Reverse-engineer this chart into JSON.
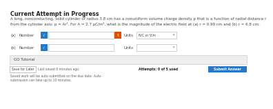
{
  "bg_color": "#ffffff",
  "panel_bg": "#f8f8f8",
  "header_text": "Current Attempt in Progress",
  "body_line1": "A long, nonconducting, solid cylinder of radius 3.8 cm has a nonuniform volume charge density p that is a function of radial distance r",
  "body_line2": "from the cylinder axis: p = Ar². For A = 2.7 µC/m⁵, what is the magnitude of the electric field at (a) r = 0.99 cm and (b) r = 6.8 cm.",
  "label_a": "(a)",
  "label_b": "(b)",
  "number_label": "Number",
  "units_label": "Units",
  "units_value_a": "N/C or V/m",
  "blue_btn_color": "#2878c8",
  "orange_btn_color": "#e05000",
  "input_box_color": "#ffffff",
  "input_border_color": "#bbbbbb",
  "go_tutorial_bg": "#eeeeee",
  "go_tutorial_border": "#cccccc",
  "go_tutorial_text": "GO Tutorial",
  "save_btn_text": "Save for Later",
  "last_saved_text": "Last saved 8 minutes ago.",
  "attempts_text": "Attempts: 0 of 5 used",
  "submit_btn_text": "Submit Answer",
  "submit_btn_color": "#2878c8",
  "footer_line1": "Saved work will be auto-submitted on the due date. Auto-",
  "footer_line2": "submission can take up to 10 minutes.",
  "dropdown_color": "#ffffff",
  "dropdown_border": "#bbbbbb",
  "header_color": "#222222",
  "body_text_color": "#444444",
  "gray_text_color": "#666666",
  "header_font_size": 5.8,
  "body_font_size": 4.0,
  "small_font_size": 3.6,
  "tiny_font_size": 3.3
}
